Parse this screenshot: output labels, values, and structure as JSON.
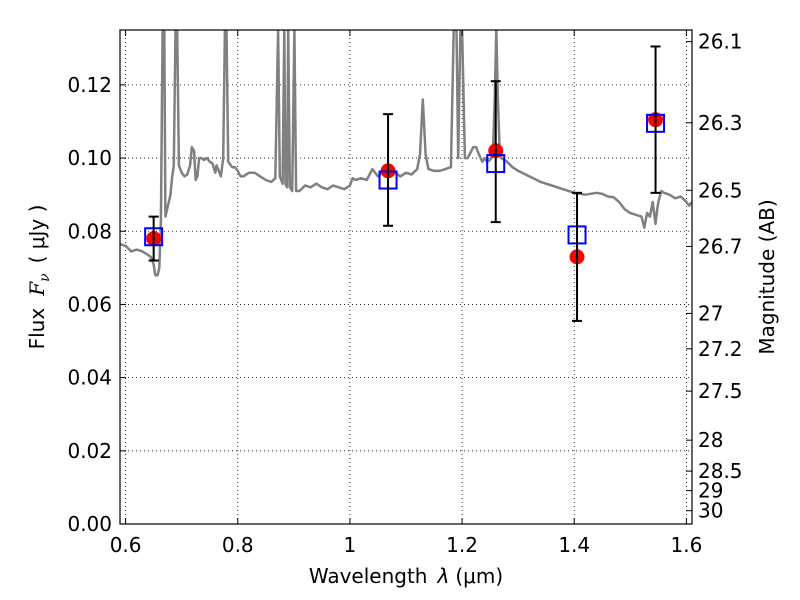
{
  "chart_data": {
    "type": "scatter",
    "title": "",
    "xlabel_prefix": "Wavelength",
    "xlabel_symbol": "λ",
    "xlabel_unit": "(μm)",
    "ylabel_prefix": "Flux",
    "ylabel_symbol": "F",
    "ylabel_subscript": "ν",
    "ylabel_unit": "( μJy )",
    "y2label": "Magnitude (AB)",
    "xlim": [
      0.59,
      1.61
    ],
    "ylim": [
      0.0,
      0.135
    ],
    "grid": true,
    "x_ticks": [
      {
        "value": 0.6,
        "label": "0.6"
      },
      {
        "value": 0.8,
        "label": "0.8"
      },
      {
        "value": 1.0,
        "label": "1"
      },
      {
        "value": 1.2,
        "label": "1.2"
      },
      {
        "value": 1.4,
        "label": "1.4"
      },
      {
        "value": 1.6,
        "label": "1.6"
      }
    ],
    "y_ticks": [
      {
        "value": 0.0,
        "label": "0.00"
      },
      {
        "value": 0.02,
        "label": "0.02"
      },
      {
        "value": 0.04,
        "label": "0.04"
      },
      {
        "value": 0.06,
        "label": "0.06"
      },
      {
        "value": 0.08,
        "label": "0.08"
      },
      {
        "value": 0.1,
        "label": "0.10"
      },
      {
        "value": 0.12,
        "label": "0.12"
      }
    ],
    "y2_ticks": [
      {
        "mag": 26.1,
        "label": "26.1"
      },
      {
        "mag": 26.3,
        "label": "26.3"
      },
      {
        "mag": 26.5,
        "label": "26.5"
      },
      {
        "mag": 26.7,
        "label": "26.7"
      },
      {
        "mag": 27.0,
        "label": "27"
      },
      {
        "mag": 27.2,
        "label": "27.2"
      },
      {
        "mag": 27.5,
        "label": "27.5"
      },
      {
        "mag": 28.0,
        "label": "28"
      },
      {
        "mag": 28.5,
        "label": "28.5"
      },
      {
        "mag": 29.0,
        "label": "29"
      },
      {
        "mag": 30.0,
        "label": "30"
      }
    ],
    "series": [
      {
        "kind": "line",
        "color": "#808080",
        "points": [
          [
            0.59,
            0.0765
          ],
          [
            0.6,
            0.076
          ],
          [
            0.61,
            0.0745
          ],
          [
            0.62,
            0.075
          ],
          [
            0.63,
            0.0745
          ],
          [
            0.64,
            0.0735
          ],
          [
            0.645,
            0.073
          ],
          [
            0.65,
            0.071
          ],
          [
            0.653,
            0.068
          ],
          [
            0.657,
            0.068
          ],
          [
            0.66,
            0.07
          ],
          [
            0.663,
            0.083
          ],
          [
            0.666,
            0.135
          ],
          [
            0.669,
            0.135
          ],
          [
            0.671,
            0.084
          ],
          [
            0.674,
            0.086
          ],
          [
            0.677,
            0.088
          ],
          [
            0.68,
            0.09
          ],
          [
            0.683,
            0.095
          ],
          [
            0.686,
            0.098
          ],
          [
            0.689,
            0.135
          ],
          [
            0.692,
            0.135
          ],
          [
            0.695,
            0.098
          ],
          [
            0.7,
            0.096
          ],
          [
            0.705,
            0.095
          ],
          [
            0.71,
            0.0955
          ],
          [
            0.715,
            0.098
          ],
          [
            0.718,
            0.103
          ],
          [
            0.722,
            0.102
          ],
          [
            0.725,
            0.094
          ],
          [
            0.728,
            0.095
          ],
          [
            0.731,
            0.1
          ],
          [
            0.735,
            0.1
          ],
          [
            0.74,
            0.0995
          ],
          [
            0.745,
            0.1
          ],
          [
            0.75,
            0.099
          ],
          [
            0.755,
            0.0985
          ],
          [
            0.76,
            0.096
          ],
          [
            0.762,
            0.098
          ],
          [
            0.765,
            0.097
          ],
          [
            0.77,
            0.095
          ],
          [
            0.774,
            0.1
          ],
          [
            0.777,
            0.135
          ],
          [
            0.78,
            0.135
          ],
          [
            0.783,
            0.099
          ],
          [
            0.79,
            0.0975
          ],
          [
            0.795,
            0.0975
          ],
          [
            0.8,
            0.0965
          ],
          [
            0.805,
            0.095
          ],
          [
            0.81,
            0.095
          ],
          [
            0.82,
            0.096
          ],
          [
            0.83,
            0.096
          ],
          [
            0.84,
            0.095
          ],
          [
            0.85,
            0.094
          ],
          [
            0.86,
            0.0935
          ],
          [
            0.867,
            0.0945
          ],
          [
            0.872,
            0.135
          ],
          [
            0.875,
            0.095
          ],
          [
            0.88,
            0.093
          ],
          [
            0.883,
            0.135
          ],
          [
            0.885,
            0.093
          ],
          [
            0.888,
            0.092
          ],
          [
            0.89,
            0.135
          ],
          [
            0.893,
            0.092
          ],
          [
            0.897,
            0.091
          ],
          [
            0.901,
            0.135
          ],
          [
            0.904,
            0.091
          ],
          [
            0.91,
            0.091
          ],
          [
            0.92,
            0.0925
          ],
          [
            0.93,
            0.092
          ],
          [
            0.94,
            0.093
          ],
          [
            0.95,
            0.092
          ],
          [
            0.96,
            0.0915
          ],
          [
            0.97,
            0.0925
          ],
          [
            0.98,
            0.092
          ],
          [
            0.99,
            0.0915
          ],
          [
            1.0,
            0.0925
          ],
          [
            1.005,
            0.0945
          ],
          [
            1.01,
            0.094
          ],
          [
            1.02,
            0.0945
          ],
          [
            1.03,
            0.094
          ],
          [
            1.04,
            0.097
          ],
          [
            1.05,
            0.095
          ],
          [
            1.06,
            0.0965
          ],
          [
            1.07,
            0.098
          ],
          [
            1.08,
            0.096
          ],
          [
            1.09,
            0.095
          ],
          [
            1.1,
            0.096
          ],
          [
            1.11,
            0.0955
          ],
          [
            1.12,
            0.097
          ],
          [
            1.125,
            0.101
          ],
          [
            1.13,
            0.116
          ],
          [
            1.135,
            0.101
          ],
          [
            1.14,
            0.097
          ],
          [
            1.15,
            0.0965
          ],
          [
            1.16,
            0.0965
          ],
          [
            1.17,
            0.097
          ],
          [
            1.18,
            0.0975
          ],
          [
            1.185,
            0.135
          ],
          [
            1.19,
            0.135
          ],
          [
            1.193,
            0.1
          ],
          [
            1.197,
            0.135
          ],
          [
            1.2,
            0.135
          ],
          [
            1.205,
            0.1
          ],
          [
            1.21,
            0.1
          ],
          [
            1.22,
            0.103
          ],
          [
            1.225,
            0.103
          ],
          [
            1.23,
            0.101
          ],
          [
            1.236,
            0.099
          ],
          [
            1.24,
            0.1
          ],
          [
            1.245,
            0.099
          ],
          [
            1.25,
            0.0995
          ],
          [
            1.255,
            0.101
          ],
          [
            1.258,
            0.115
          ],
          [
            1.261,
            0.135
          ],
          [
            1.264,
            0.115
          ],
          [
            1.267,
            0.102
          ],
          [
            1.27,
            0.1
          ],
          [
            1.28,
            0.099
          ],
          [
            1.29,
            0.0975
          ],
          [
            1.3,
            0.0965
          ],
          [
            1.32,
            0.095
          ],
          [
            1.34,
            0.0935
          ],
          [
            1.36,
            0.0925
          ],
          [
            1.38,
            0.0915
          ],
          [
            1.4,
            0.0905
          ],
          [
            1.42,
            0.09
          ],
          [
            1.44,
            0.0905
          ],
          [
            1.45,
            0.0902
          ],
          [
            1.46,
            0.0895
          ],
          [
            1.47,
            0.0893
          ],
          [
            1.48,
            0.088
          ],
          [
            1.49,
            0.086
          ],
          [
            1.5,
            0.085
          ],
          [
            1.51,
            0.0845
          ],
          [
            1.52,
            0.084
          ],
          [
            1.525,
            0.081
          ],
          [
            1.53,
            0.085
          ],
          [
            1.535,
            0.084
          ],
          [
            1.54,
            0.088
          ],
          [
            1.545,
            0.082
          ],
          [
            1.548,
            0.086
          ],
          [
            1.55,
            0.088
          ],
          [
            1.555,
            0.091
          ],
          [
            1.56,
            0.0905
          ],
          [
            1.57,
            0.09
          ],
          [
            1.58,
            0.089
          ],
          [
            1.59,
            0.0895
          ],
          [
            1.6,
            0.088
          ],
          [
            1.605,
            0.087
          ],
          [
            1.61,
            0.088
          ]
        ]
      },
      {
        "kind": "scatter",
        "marker": "circle",
        "color": "#ff0000",
        "x": [
          0.65,
          1.068,
          1.26,
          1.405,
          1.545
        ],
        "y": [
          0.078,
          0.0965,
          0.102,
          0.073,
          0.1105
        ]
      },
      {
        "kind": "scatter",
        "marker": "open-square",
        "color": "#0000ff",
        "x": [
          0.65,
          1.068,
          1.26,
          1.405,
          1.545
        ],
        "y": [
          0.0785,
          0.094,
          0.0985,
          0.079,
          0.1095
        ]
      },
      {
        "kind": "errorbar",
        "color": "#000000",
        "x": [
          0.65,
          1.068,
          1.26,
          1.405,
          1.545
        ],
        "ylow": [
          0.072,
          0.0815,
          0.0825,
          0.0555,
          0.0905
        ],
        "yhigh": [
          0.084,
          0.112,
          0.121,
          0.0905,
          0.1305
        ]
      }
    ]
  }
}
